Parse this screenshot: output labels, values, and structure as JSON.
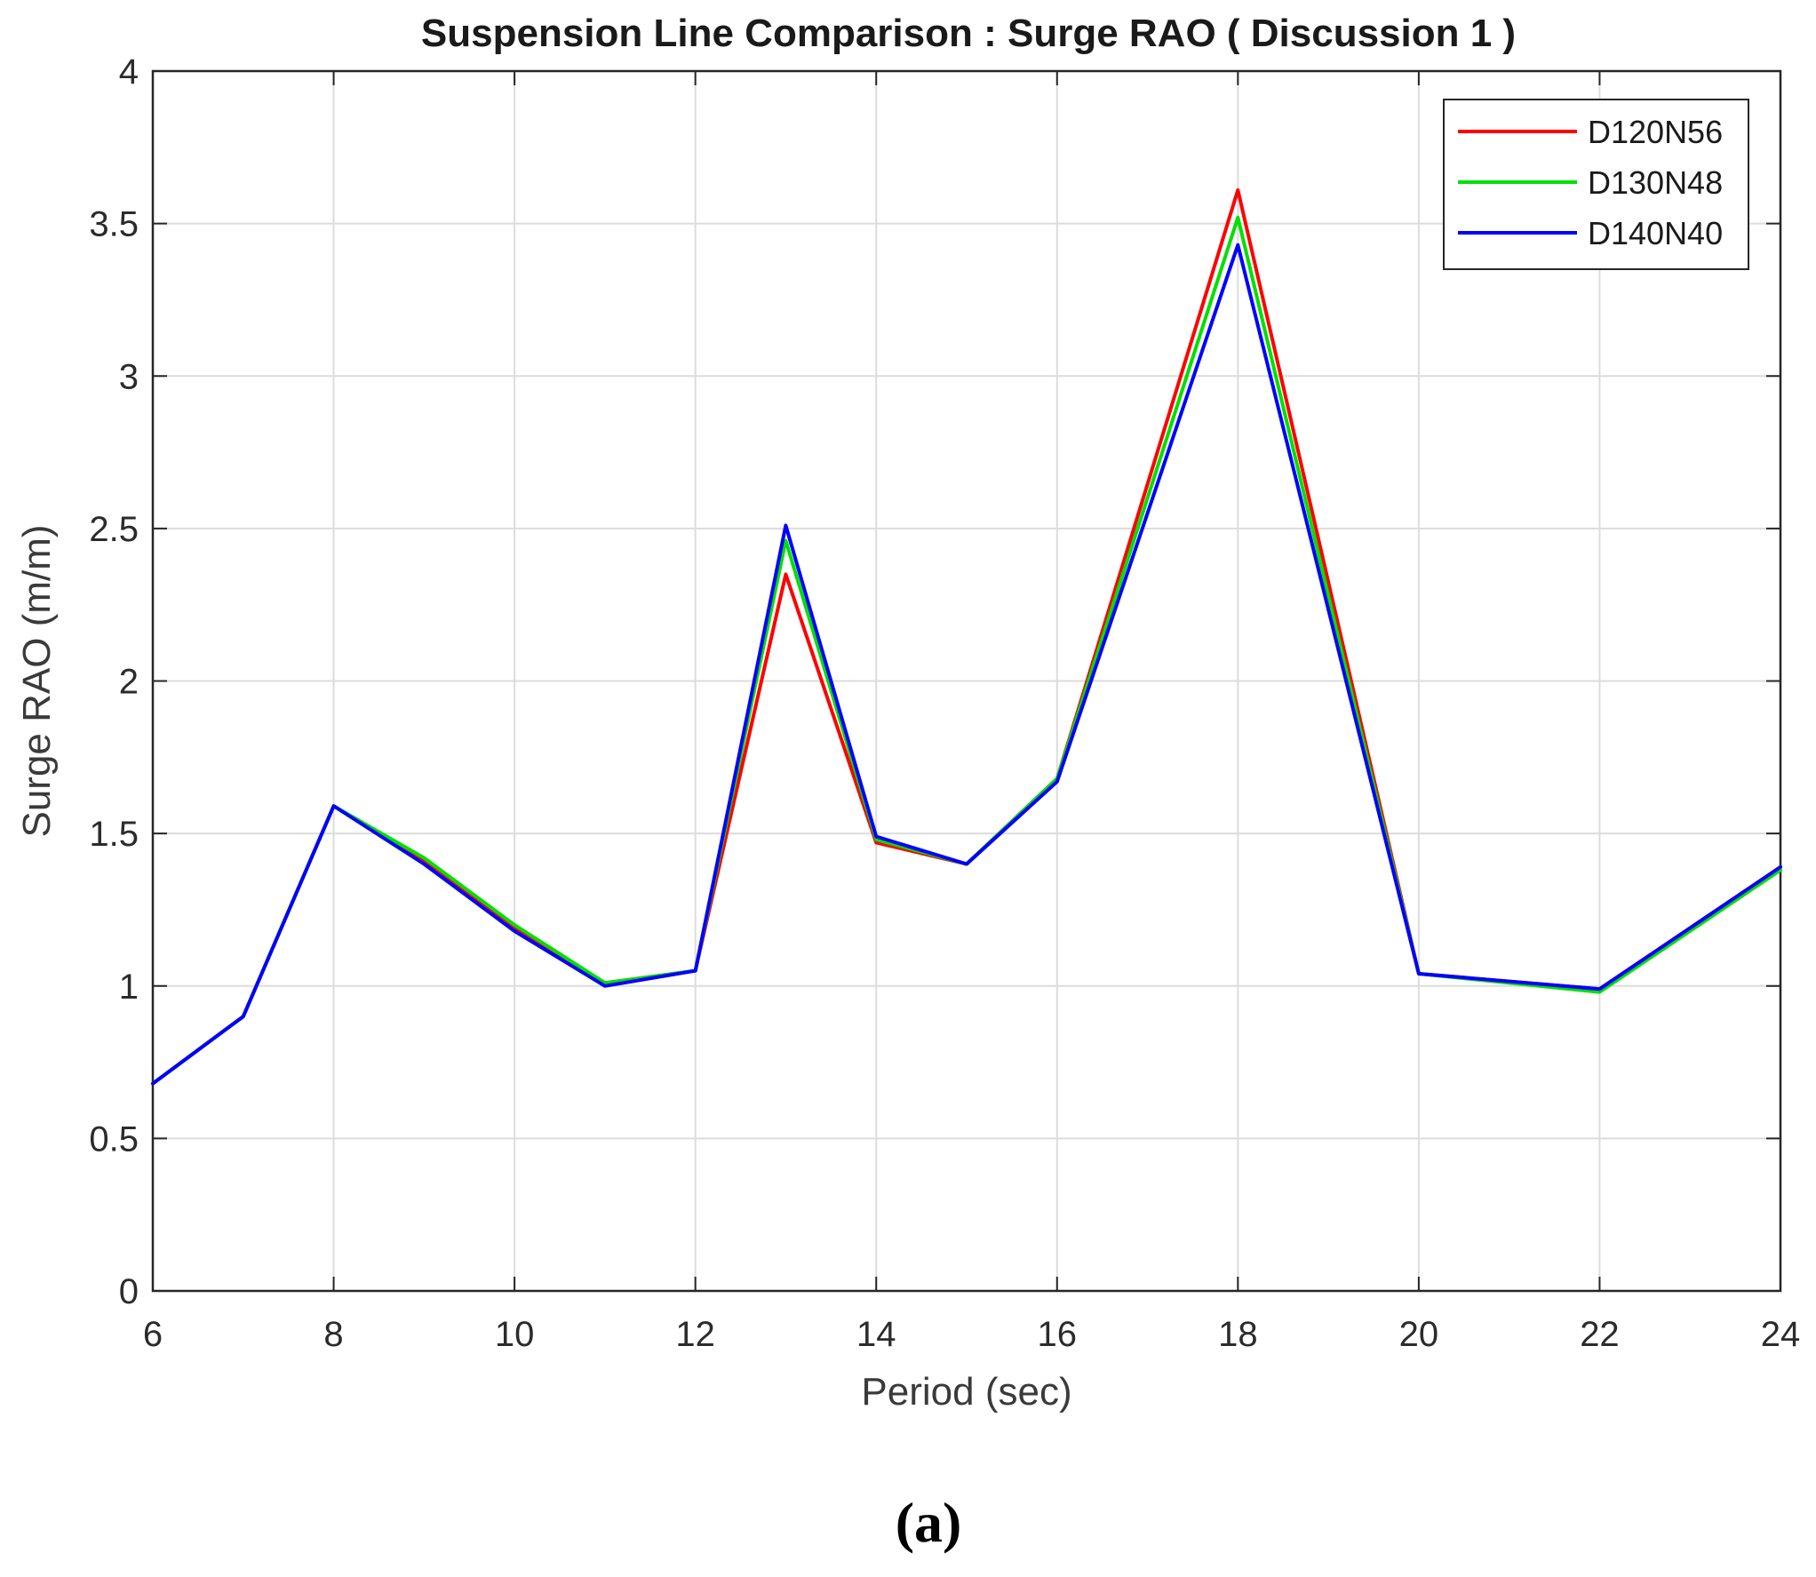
{
  "chart_data": {
    "type": "line",
    "title": "Suspension Line Comparison : Surge RAO ( Discussion 1 )",
    "xlabel": "Period (sec)",
    "ylabel": "Surge RAO (m/m)",
    "xlim": [
      6,
      24
    ],
    "ylim": [
      0,
      4
    ],
    "xticks": [
      6,
      8,
      10,
      12,
      14,
      16,
      18,
      20,
      22,
      24
    ],
    "yticks": [
      0,
      0.5,
      1,
      1.5,
      2,
      2.5,
      3,
      3.5,
      4
    ],
    "xtick_labels": [
      "6",
      "8",
      "10",
      "12",
      "14",
      "16",
      "18",
      "20",
      "22",
      "24"
    ],
    "ytick_labels": [
      "0",
      "0.5",
      "1",
      "1.5",
      "2",
      "2.5",
      "3",
      "3.5",
      "4"
    ],
    "grid": true,
    "legend_position": "top-right",
    "x": [
      6,
      7,
      8,
      9,
      10,
      11,
      12,
      13,
      14,
      15,
      16,
      18,
      20,
      22,
      24
    ],
    "series": [
      {
        "name": "D120N56",
        "color": "#ff0000",
        "values": [
          0.68,
          0.9,
          1.59,
          1.41,
          1.19,
          1.01,
          1.05,
          2.35,
          1.47,
          1.4,
          1.68,
          3.61,
          1.04,
          0.99,
          1.39
        ]
      },
      {
        "name": "D130N48",
        "color": "#00e000",
        "values": [
          0.68,
          0.9,
          1.59,
          1.42,
          1.2,
          1.01,
          1.05,
          2.46,
          1.48,
          1.4,
          1.68,
          3.52,
          1.04,
          0.98,
          1.38
        ]
      },
      {
        "name": "D140N40",
        "color": "#0000ff",
        "values": [
          0.68,
          0.9,
          1.59,
          1.4,
          1.18,
          1.0,
          1.05,
          2.51,
          1.49,
          1.4,
          1.67,
          3.43,
          1.04,
          0.99,
          1.39
        ]
      }
    ]
  },
  "caption": "(a)"
}
